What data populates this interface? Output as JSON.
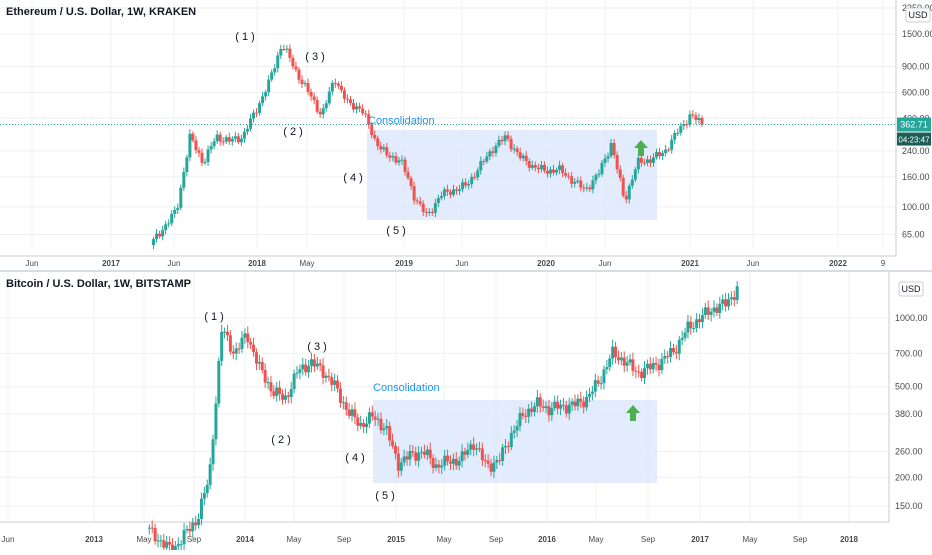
{
  "chart_data": [
    {
      "type": "candlestick",
      "title": "Ethereum / U.S. Dollar, 1W, KRAKEN",
      "axis_unit": "USD",
      "y_scale": "log",
      "ylim": [
        55,
        2250
      ],
      "y_ticks": [
        "2250.00",
        "1500.00",
        "900.00",
        "600.00",
        "400.00",
        "240.00",
        "160.00",
        "100.00",
        "65.00"
      ],
      "x_ticks": [
        "Jun",
        "2017",
        "Jun",
        "2018",
        "May",
        "2019",
        "Jun",
        "2020",
        "Jun",
        "2021",
        "Jun",
        "2022",
        "9"
      ],
      "last_price": "362.71",
      "countdown": "04:23:47",
      "wave_labels": [
        "( 1 )",
        "( 2 )",
        "( 3 )",
        "( 4 )",
        "( 5 )"
      ],
      "zone_label": "Consolidation",
      "arrow": "up",
      "colors": {
        "up": "#26a69a",
        "down": "#ef5350",
        "zone": "#dbe7fb",
        "annotation": "#2196f3",
        "price_label": "#26a69a"
      },
      "price_path": [
        [
          "2017-03",
          55
        ],
        [
          "2017-05",
          95
        ],
        [
          "2017-06",
          300
        ],
        [
          "2017-07",
          200
        ],
        [
          "2017-08",
          300
        ],
        [
          "2017-09",
          280
        ],
        [
          "2017-10",
          300
        ],
        [
          "2017-11",
          450
        ],
        [
          "2017-12",
          700
        ],
        [
          "2018-01",
          1300
        ],
        [
          "2018-02",
          850
        ],
        [
          "2018-04",
          420
        ],
        [
          "2018-05",
          750
        ],
        [
          "2018-06",
          500
        ],
        [
          "2018-07",
          470
        ],
        [
          "2018-08",
          290
        ],
        [
          "2018-09",
          220
        ],
        [
          "2018-10",
          210
        ],
        [
          "2018-11",
          120
        ],
        [
          "2018-12",
          85
        ],
        [
          "2019-01",
          120
        ],
        [
          "2019-03",
          140
        ],
        [
          "2019-05",
          250
        ],
        [
          "2019-06",
          300
        ],
        [
          "2019-07",
          220
        ],
        [
          "2019-08",
          190
        ],
        [
          "2019-09",
          175
        ],
        [
          "2019-10",
          180
        ],
        [
          "2019-12",
          130
        ],
        [
          "2020-01",
          165
        ],
        [
          "2020-02",
          270
        ],
        [
          "2020-03",
          110
        ],
        [
          "2020-04",
          200
        ],
        [
          "2020-05",
          210
        ],
        [
          "2020-06",
          235
        ],
        [
          "2020-07",
          320
        ],
        [
          "2020-08",
          420
        ],
        [
          "2020-09",
          362
        ]
      ]
    },
    {
      "type": "candlestick",
      "title": "Bitcoin / U.S. Dollar, 1W, BITSTAMP",
      "axis_unit": "USD",
      "y_scale": "log",
      "ylim": [
        130,
        1500
      ],
      "y_ticks": [
        "1000.00",
        "700.00",
        "500.00",
        "380.00",
        "260.00",
        "200.00",
        "150.00"
      ],
      "x_ticks": [
        "Jun",
        "2013",
        "May",
        "Sep",
        "2014",
        "May",
        "Sep",
        "2015",
        "May",
        "Sep",
        "2016",
        "May",
        "Sep",
        "2017",
        "May",
        "Sep",
        "2018"
      ],
      "wave_labels": [
        "( 1 )",
        "( 2 )",
        "( 3 )",
        "( 4 )",
        "( 5 )"
      ],
      "zone_label": "Consolidation",
      "arrow": "up",
      "colors": {
        "up": "#26a69a",
        "down": "#ef5350",
        "zone": "#dbe7fb",
        "annotation": "#2196f3"
      },
      "price_path": [
        [
          "2013-05",
          120
        ],
        [
          "2013-07",
          95
        ],
        [
          "2013-09",
          130
        ],
        [
          "2013-10",
          200
        ],
        [
          "2013-11",
          900
        ],
        [
          "2013-12",
          700
        ],
        [
          "2014-01",
          850
        ],
        [
          "2014-02",
          600
        ],
        [
          "2014-03",
          480
        ],
        [
          "2014-04",
          440
        ],
        [
          "2014-05",
          580
        ],
        [
          "2014-06",
          640
        ],
        [
          "2014-07",
          590
        ],
        [
          "2014-08",
          500
        ],
        [
          "2014-09",
          390
        ],
        [
          "2014-10",
          340
        ],
        [
          "2014-11",
          370
        ],
        [
          "2014-12",
          330
        ],
        [
          "2015-01",
          230
        ],
        [
          "2015-02",
          250
        ],
        [
          "2015-03",
          260
        ],
        [
          "2015-04",
          225
        ],
        [
          "2015-05",
          235
        ],
        [
          "2015-06",
          240
        ],
        [
          "2015-07",
          285
        ],
        [
          "2015-08",
          225
        ],
        [
          "2015-09",
          235
        ],
        [
          "2015-10",
          310
        ],
        [
          "2015-11",
          380
        ],
        [
          "2015-12",
          420
        ],
        [
          "2016-01",
          400
        ],
        [
          "2016-02",
          410
        ],
        [
          "2016-03",
          415
        ],
        [
          "2016-04",
          445
        ],
        [
          "2016-05",
          530
        ],
        [
          "2016-06",
          700
        ],
        [
          "2016-07",
          650
        ],
        [
          "2016-08",
          575
        ],
        [
          "2016-09",
          605
        ],
        [
          "2016-10",
          650
        ],
        [
          "2016-11",
          730
        ],
        [
          "2016-12",
          900
        ],
        [
          "2017-01",
          1000
        ],
        [
          "2017-02",
          1100
        ],
        [
          "2017-03",
          1150
        ],
        [
          "2017-04",
          1350
        ]
      ]
    }
  ]
}
